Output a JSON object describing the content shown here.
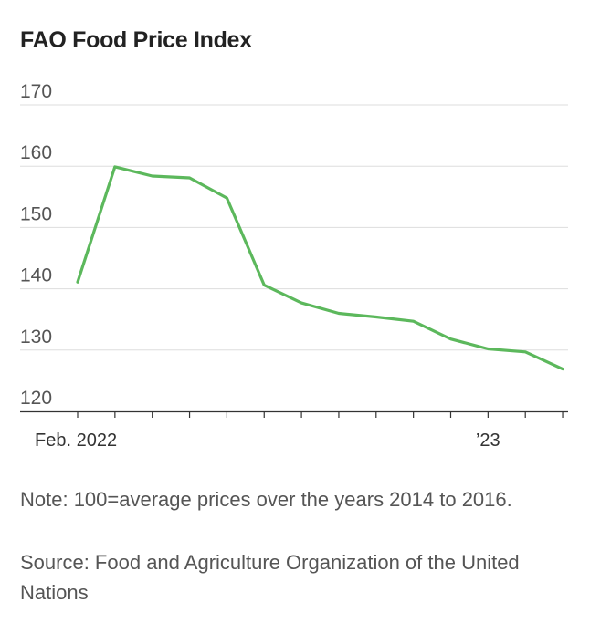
{
  "chart_data": {
    "type": "line",
    "title": "FAO Food Price Index",
    "xlabel": "",
    "ylabel": "",
    "ylim": [
      120,
      170
    ],
    "yticks": [
      120,
      130,
      140,
      150,
      160,
      170
    ],
    "x": [
      "2022-02",
      "2022-03",
      "2022-04",
      "2022-05",
      "2022-06",
      "2022-07",
      "2022-08",
      "2022-09",
      "2022-10",
      "2022-11",
      "2022-12",
      "2023-01",
      "2023-02",
      "2023-03"
    ],
    "x_tick_labels": [
      {
        "x": "2022-02",
        "label": "Feb. 2022"
      },
      {
        "x": "2023-01",
        "label": "’23"
      }
    ],
    "series": [
      {
        "values": [
          141.1,
          159.9,
          158.4,
          158.1,
          154.8,
          140.6,
          137.7,
          136.0,
          135.4,
          134.7,
          131.8,
          130.2,
          129.7,
          126.9
        ],
        "color": "#5cb85c"
      }
    ],
    "grid": true,
    "legend": "none"
  },
  "notes": {
    "note": "Note: 100=average prices over the years 2014 to 2016.",
    "source": "Source: Food and Agriculture Organization of the United Nations"
  }
}
